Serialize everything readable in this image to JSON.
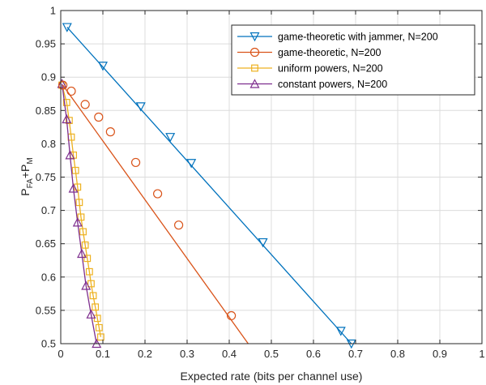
{
  "chart_data": {
    "type": "line",
    "xlabel": "Expected rate (bits per channel use)",
    "ylabel": "P_FA+P_M",
    "ylabel_parts": {
      "p1": "P",
      "sub1": "FA",
      "plus": "+P",
      "sub2": "M"
    },
    "xlim": [
      0,
      1
    ],
    "ylim": [
      0.5,
      1
    ],
    "xticks": [
      "0",
      "0.1",
      "0.2",
      "0.3",
      "0.4",
      "0.5",
      "0.6",
      "0.7",
      "0.8",
      "0.9",
      "1"
    ],
    "yticks": [
      "0.5",
      "0.55",
      "0.6",
      "0.65",
      "0.7",
      "0.75",
      "0.8",
      "0.85",
      "0.9",
      "0.95",
      "1"
    ],
    "xtick_values": [
      0,
      0.1,
      0.2,
      0.3,
      0.4,
      0.5,
      0.6,
      0.7,
      0.8,
      0.9,
      1
    ],
    "ytick_values": [
      0.5,
      0.55,
      0.6,
      0.65,
      0.7,
      0.75,
      0.8,
      0.85,
      0.9,
      0.95,
      1
    ],
    "grid": true,
    "legend_position": "top-right",
    "series": [
      {
        "name": "game-theoretic with jammer, N=200",
        "color": "#0072BD",
        "marker": "triangle-down",
        "line": [
          [
            0.015,
            0.975
          ],
          [
            0.69,
            0.5
          ]
        ],
        "markers": [
          [
            0.015,
            0.975
          ],
          [
            0.1,
            0.917
          ],
          [
            0.19,
            0.856
          ],
          [
            0.26,
            0.81
          ],
          [
            0.31,
            0.771
          ],
          [
            0.48,
            0.652
          ],
          [
            0.665,
            0.519
          ],
          [
            0.69,
            0.5
          ]
        ]
      },
      {
        "name": "game-theoretic, N=200",
        "color": "#D95319",
        "marker": "circle",
        "line": [
          [
            0.005,
            0.888
          ],
          [
            0.445,
            0.5
          ]
        ],
        "markers": [
          [
            0.005,
            0.888
          ],
          [
            0.025,
            0.879
          ],
          [
            0.058,
            0.859
          ],
          [
            0.09,
            0.84
          ],
          [
            0.118,
            0.818
          ],
          [
            0.178,
            0.772
          ],
          [
            0.23,
            0.725
          ],
          [
            0.28,
            0.678
          ],
          [
            0.405,
            0.542
          ]
        ]
      },
      {
        "name": "uniform powers, N=200",
        "color": "#EDB120",
        "marker": "square",
        "line": [
          [
            0.003,
            0.888
          ],
          [
            0.014,
            0.862
          ],
          [
            0.02,
            0.835
          ],
          [
            0.025,
            0.81
          ],
          [
            0.03,
            0.783
          ],
          [
            0.035,
            0.76
          ],
          [
            0.04,
            0.735
          ],
          [
            0.044,
            0.712
          ],
          [
            0.048,
            0.69
          ],
          [
            0.053,
            0.668
          ],
          [
            0.058,
            0.648
          ],
          [
            0.063,
            0.628
          ],
          [
            0.068,
            0.608
          ],
          [
            0.072,
            0.59
          ],
          [
            0.077,
            0.572
          ],
          [
            0.082,
            0.555
          ],
          [
            0.087,
            0.538
          ],
          [
            0.091,
            0.524
          ],
          [
            0.095,
            0.51
          ]
        ],
        "markers": [
          [
            0.003,
            0.888
          ],
          [
            0.014,
            0.862
          ],
          [
            0.02,
            0.835
          ],
          [
            0.025,
            0.81
          ],
          [
            0.03,
            0.783
          ],
          [
            0.035,
            0.76
          ],
          [
            0.04,
            0.735
          ],
          [
            0.044,
            0.712
          ],
          [
            0.048,
            0.69
          ],
          [
            0.053,
            0.668
          ],
          [
            0.058,
            0.648
          ],
          [
            0.063,
            0.628
          ],
          [
            0.068,
            0.608
          ],
          [
            0.072,
            0.59
          ],
          [
            0.077,
            0.572
          ],
          [
            0.082,
            0.555
          ],
          [
            0.087,
            0.538
          ],
          [
            0.091,
            0.524
          ],
          [
            0.095,
            0.51
          ]
        ]
      },
      {
        "name": "constant powers, N=200",
        "color": "#7E2F8E",
        "marker": "triangle-up",
        "line": [
          [
            0.003,
            0.89
          ],
          [
            0.014,
            0.837
          ],
          [
            0.022,
            0.783
          ],
          [
            0.03,
            0.733
          ],
          [
            0.04,
            0.682
          ],
          [
            0.05,
            0.635
          ],
          [
            0.06,
            0.587
          ],
          [
            0.072,
            0.544
          ],
          [
            0.085,
            0.5
          ]
        ],
        "markers": [
          [
            0.003,
            0.89
          ],
          [
            0.014,
            0.837
          ],
          [
            0.022,
            0.783
          ],
          [
            0.03,
            0.733
          ],
          [
            0.04,
            0.682
          ],
          [
            0.05,
            0.635
          ],
          [
            0.06,
            0.587
          ],
          [
            0.072,
            0.544
          ],
          [
            0.085,
            0.5
          ]
        ]
      }
    ]
  }
}
